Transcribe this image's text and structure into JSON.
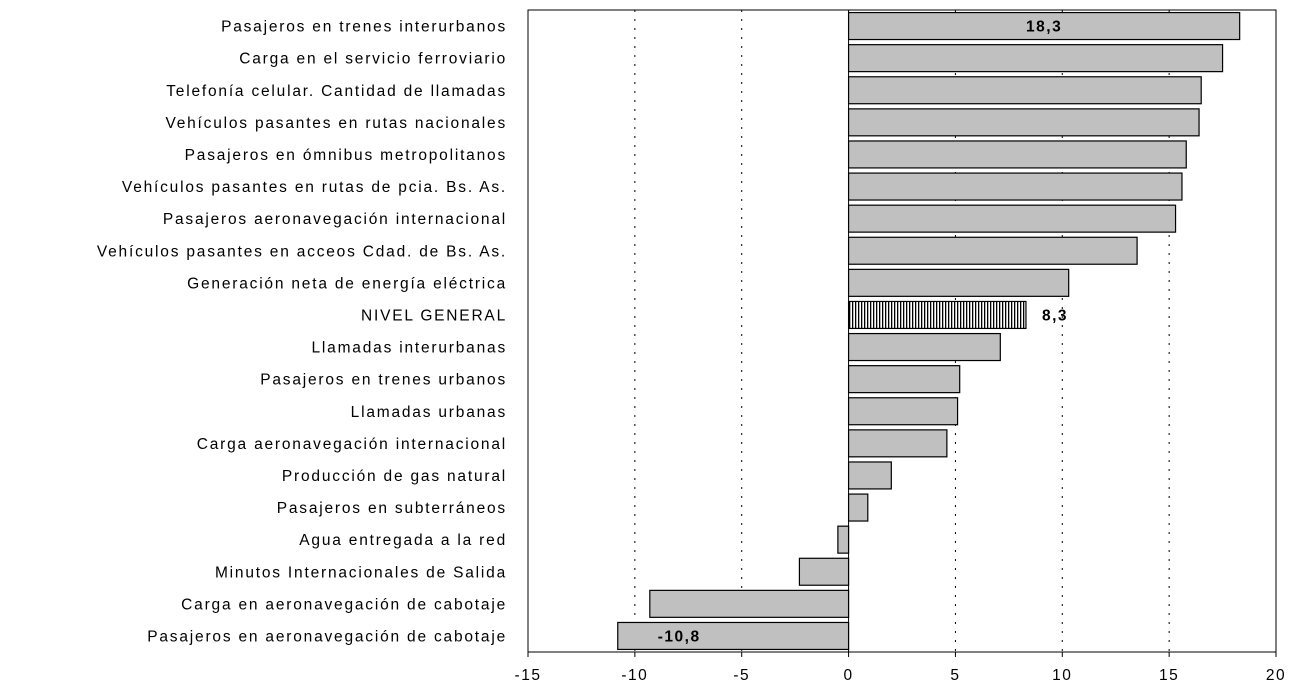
{
  "chart_data": {
    "type": "bar",
    "orientation": "horizontal",
    "title": "",
    "xlabel": "",
    "ylabel": "",
    "xlim": [
      -15,
      20
    ],
    "xticks": [
      -15,
      -10,
      -5,
      0,
      5,
      10,
      15,
      20
    ],
    "xtick_labels": [
      "-15",
      "-10",
      "-5",
      "0",
      "5",
      "10",
      "15",
      "20"
    ],
    "grid": "vertical-dotted",
    "legend": "none",
    "categories": [
      "Pasajeros en trenes interurbanos",
      "Carga en el servicio ferroviario",
      "Telefonía celular. Cantidad de llamadas",
      "Vehículos pasantes en rutas nacionales",
      "Pasajeros en ómnibus metropolitanos",
      "Vehículos pasantes en rutas de pcia. Bs. As.",
      "Pasajeros aeronavegación internacional",
      "Vehículos pasantes en acceos Cdad. de Bs. As.",
      "Generación neta de energía eléctrica",
      "NIVEL GENERAL",
      "Llamadas interurbanas",
      "Pasajeros en trenes urbanos",
      "Llamadas urbanas",
      "Carga aeronavegación internacional",
      "Producción de gas natural",
      "Pasajeros en subterráneos",
      "Agua entregada a la red",
      "Minutos Internacionales de Salida",
      "Carga en aeronavegación de cabotaje",
      "Pasajeros en aeronavegación de cabotaje"
    ],
    "values": [
      18.3,
      17.5,
      16.5,
      16.4,
      15.8,
      15.6,
      15.3,
      13.5,
      10.3,
      8.3,
      7.1,
      5.2,
      5.1,
      4.6,
      2.0,
      0.9,
      -0.5,
      -2.3,
      -9.3,
      -10.8
    ],
    "data_labels": [
      {
        "index": 0,
        "text": "18,3"
      },
      {
        "index": 9,
        "text": "8,3"
      },
      {
        "index": 19,
        "text": "-10,8"
      }
    ],
    "highlight_index": 9,
    "colors": {
      "bar_fill": "#c0c0c0",
      "bar_stroke": "#000000",
      "highlight_pattern": "vertical-hatch",
      "axis": "#000000",
      "grid": "#000000"
    }
  }
}
